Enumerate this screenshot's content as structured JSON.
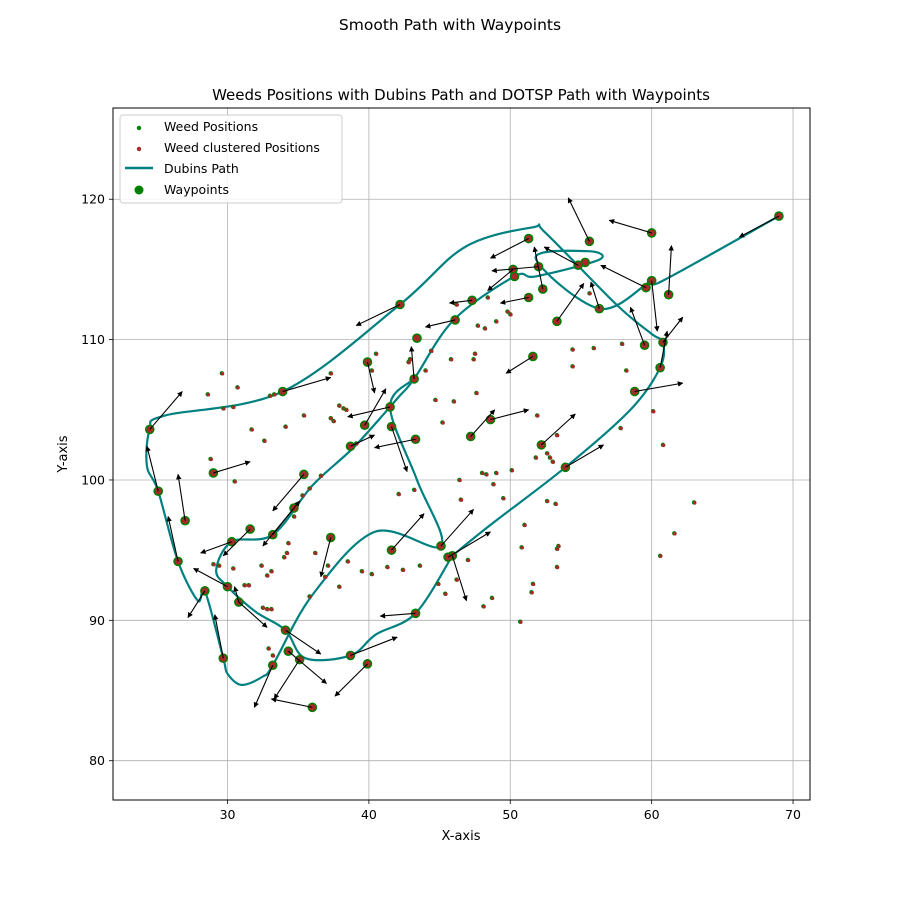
{
  "figure_title": "Smooth Path with Waypoints",
  "chart_data": {
    "type": "scatter",
    "title": "Weeds Positions with Dubins Path and DOTSP Path with Waypoints",
    "xlabel": "X-axis",
    "ylabel": "Y-axis",
    "xlim": [
      21.9,
      71.2
    ],
    "ylim": [
      77.2,
      126.5
    ],
    "xticks": [
      30,
      40,
      50,
      60,
      70
    ],
    "yticks": [
      80,
      90,
      100,
      110,
      120
    ],
    "grid": true,
    "legend_position": "upper-left",
    "legend": [
      {
        "label": "Weed Positions",
        "marker": "small-dot",
        "color": "#008000"
      },
      {
        "label": "Weed clustered Positions",
        "marker": "small-dot",
        "color": "#a52a2a"
      },
      {
        "label": "Dubins Path",
        "marker": "line",
        "color": "#008080"
      },
      {
        "label": "Waypoints",
        "marker": "large-dot",
        "color": "#008000"
      }
    ],
    "colors": {
      "weed": "#008000",
      "clustered": "#a52a2a",
      "path": "#008080",
      "waypoint": "#008000",
      "arrow": "#000000",
      "grid": "#b0b0b0"
    },
    "waypoints": [
      [
        69.0,
        118.8
      ],
      [
        60.0,
        117.6
      ],
      [
        61.2,
        113.2
      ],
      [
        59.6,
        113.7
      ],
      [
        60.0,
        114.2
      ],
      [
        56.3,
        112.2
      ],
      [
        52.3,
        113.6
      ],
      [
        52.0,
        115.2
      ],
      [
        51.3,
        117.2
      ],
      [
        55.6,
        117.0
      ],
      [
        55.3,
        115.5
      ],
      [
        54.8,
        115.3
      ],
      [
        50.2,
        115.0
      ],
      [
        50.3,
        114.5
      ],
      [
        51.3,
        113.0
      ],
      [
        47.3,
        112.8
      ],
      [
        46.1,
        111.4
      ],
      [
        42.2,
        112.5
      ],
      [
        53.3,
        111.3
      ],
      [
        51.6,
        108.8
      ],
      [
        59.5,
        109.6
      ],
      [
        60.8,
        109.8
      ],
      [
        60.6,
        108.0
      ],
      [
        58.8,
        106.3
      ],
      [
        43.2,
        107.2
      ],
      [
        39.9,
        108.4
      ],
      [
        41.5,
        105.2
      ],
      [
        33.9,
        106.3
      ],
      [
        24.5,
        103.6
      ],
      [
        25.1,
        99.2
      ],
      [
        26.5,
        94.2
      ],
      [
        27.0,
        97.1
      ],
      [
        28.4,
        92.1
      ],
      [
        29.0,
        100.5
      ],
      [
        30.0,
        92.4
      ],
      [
        30.3,
        95.6
      ],
      [
        31.6,
        96.5
      ],
      [
        30.8,
        91.3
      ],
      [
        29.7,
        87.3
      ],
      [
        33.2,
        96.1
      ],
      [
        34.7,
        98.0
      ],
      [
        35.4,
        100.4
      ],
      [
        37.3,
        95.9
      ],
      [
        38.7,
        102.4
      ],
      [
        39.7,
        103.9
      ],
      [
        41.6,
        103.8
      ],
      [
        43.3,
        102.9
      ],
      [
        47.2,
        103.1
      ],
      [
        48.6,
        104.3
      ],
      [
        52.2,
        102.5
      ],
      [
        53.9,
        100.9
      ],
      [
        41.6,
        95.0
      ],
      [
        45.1,
        95.3
      ],
      [
        45.9,
        94.6
      ],
      [
        45.6,
        94.5
      ],
      [
        43.3,
        90.5
      ],
      [
        34.1,
        89.3
      ],
      [
        34.3,
        87.8
      ],
      [
        33.2,
        86.8
      ],
      [
        35.1,
        87.2
      ],
      [
        38.7,
        87.5
      ],
      [
        36.0,
        83.8
      ],
      [
        39.9,
        86.9
      ],
      [
        43.4,
        110.1
      ]
    ],
    "weed_positions": [
      [
        28.6,
        106.1
      ],
      [
        29.6,
        107.6
      ],
      [
        30.7,
        106.6
      ],
      [
        29.7,
        105.1
      ],
      [
        30.4,
        105.2
      ],
      [
        28.8,
        101.5
      ],
      [
        30.5,
        99.9
      ],
      [
        31.7,
        103.6
      ],
      [
        32.6,
        102.8
      ],
      [
        33.0,
        106.0
      ],
      [
        33.3,
        106.1
      ],
      [
        35.4,
        104.6
      ],
      [
        37.3,
        107.6
      ],
      [
        37.3,
        104.4
      ],
      [
        37.5,
        104.2
      ],
      [
        37.9,
        105.3
      ],
      [
        38.2,
        105.1
      ],
      [
        38.4,
        105.0
      ],
      [
        39.1,
        102.6
      ],
      [
        40.2,
        107.8
      ],
      [
        40.5,
        109.0
      ],
      [
        41.4,
        105.3
      ],
      [
        42.8,
        108.4
      ],
      [
        42.9,
        108.6
      ],
      [
        44.0,
        107.8
      ],
      [
        44.4,
        109.2
      ],
      [
        45.8,
        108.6
      ],
      [
        46.2,
        112.5
      ],
      [
        47.4,
        108.6
      ],
      [
        47.5,
        109.0
      ],
      [
        47.6,
        106.2
      ],
      [
        47.7,
        111.0
      ],
      [
        48.2,
        110.8
      ],
      [
        48.4,
        113.0
      ],
      [
        49.0,
        111.3
      ],
      [
        49.8,
        112.0
      ],
      [
        50.0,
        111.8
      ],
      [
        49.0,
        100.5
      ],
      [
        48.3,
        100.4
      ],
      [
        48.8,
        99.7
      ],
      [
        49.5,
        98.7
      ],
      [
        50.1,
        100.7
      ],
      [
        51.8,
        101.6
      ],
      [
        52.6,
        101.9
      ],
      [
        53.0,
        101.3
      ],
      [
        52.8,
        101.6
      ],
      [
        51.9,
        104.6
      ],
      [
        53.3,
        103.2
      ],
      [
        54.4,
        109.3
      ],
      [
        54.4,
        108.1
      ],
      [
        55.6,
        113.3
      ],
      [
        55.9,
        109.4
      ],
      [
        57.9,
        109.7
      ],
      [
        58.2,
        107.8
      ],
      [
        57.8,
        103.7
      ],
      [
        60.1,
        104.9
      ],
      [
        60.8,
        102.5
      ],
      [
        61.6,
        96.2
      ],
      [
        63.0,
        98.4
      ],
      [
        60.6,
        94.6
      ],
      [
        52.6,
        98.5
      ],
      [
        53.2,
        98.3
      ],
      [
        53.4,
        95.3
      ],
      [
        53.3,
        95.1
      ],
      [
        53.3,
        93.8
      ],
      [
        51.6,
        92.6
      ],
      [
        51.5,
        92.0
      ],
      [
        50.7,
        89.9
      ],
      [
        50.8,
        95.2
      ],
      [
        51.0,
        96.8
      ],
      [
        48.7,
        91.6
      ],
      [
        48.1,
        91.0
      ],
      [
        47.0,
        94.3
      ],
      [
        46.2,
        92.9
      ],
      [
        45.4,
        91.9
      ],
      [
        44.9,
        92.6
      ],
      [
        43.6,
        93.9
      ],
      [
        42.4,
        93.6
      ],
      [
        41.3,
        93.8
      ],
      [
        40.2,
        93.3
      ],
      [
        39.5,
        93.5
      ],
      [
        38.5,
        94.2
      ],
      [
        37.9,
        92.4
      ],
      [
        37.1,
        93.9
      ],
      [
        36.9,
        93.1
      ],
      [
        36.2,
        94.8
      ],
      [
        35.8,
        91.7
      ],
      [
        34.2,
        94.8
      ],
      [
        34.0,
        94.5
      ],
      [
        34.3,
        95.5
      ],
      [
        33.1,
        93.5
      ],
      [
        32.8,
        93.2
      ],
      [
        32.4,
        93.9
      ],
      [
        31.5,
        92.5
      ],
      [
        31.2,
        92.5
      ],
      [
        32.5,
        90.9
      ],
      [
        32.8,
        90.8
      ],
      [
        33.1,
        90.8
      ],
      [
        32.9,
        88.0
      ],
      [
        33.2,
        87.5
      ],
      [
        30.4,
        93.7
      ],
      [
        29.0,
        94.0
      ],
      [
        29.4,
        93.9
      ],
      [
        34.1,
        103.8
      ],
      [
        36.6,
        100.3
      ],
      [
        35.8,
        99.4
      ],
      [
        35.3,
        98.9
      ],
      [
        34.7,
        97.4
      ],
      [
        44.7,
        105.7
      ],
      [
        46.0,
        105.6
      ],
      [
        45.2,
        104.1
      ],
      [
        46.5,
        98.6
      ],
      [
        46.4,
        100.0
      ],
      [
        48.0,
        100.5
      ],
      [
        43.2,
        99.3
      ],
      [
        42.1,
        99.0
      ]
    ],
    "arrows": [
      [
        69.0,
        118.8,
        66.2,
        117.3
      ],
      [
        60.0,
        117.6,
        57.0,
        118.5
      ],
      [
        61.2,
        113.2,
        61.4,
        116.7
      ],
      [
        59.6,
        113.7,
        56.4,
        115.3
      ],
      [
        60.0,
        114.2,
        60.4,
        110.6
      ],
      [
        56.3,
        112.2,
        55.7,
        114.1
      ],
      [
        52.3,
        113.6,
        51.7,
        116.6
      ],
      [
        52.0,
        115.2,
        48.7,
        114.9
      ],
      [
        51.3,
        117.2,
        48.6,
        115.8
      ],
      [
        55.6,
        117.0,
        54.1,
        120.1
      ],
      [
        54.8,
        115.3,
        52.4,
        116.6
      ],
      [
        50.2,
        115.0,
        48.4,
        113.5
      ],
      [
        51.3,
        113.0,
        49.3,
        112.6
      ],
      [
        47.3,
        112.8,
        45.7,
        112.6
      ],
      [
        46.1,
        111.4,
        44.0,
        110.9
      ],
      [
        42.2,
        112.5,
        39.1,
        111.0
      ],
      [
        53.3,
        111.3,
        55.2,
        114.0
      ],
      [
        51.6,
        108.8,
        49.7,
        107.6
      ],
      [
        59.5,
        109.6,
        58.5,
        112.3
      ],
      [
        60.8,
        109.8,
        62.2,
        111.6
      ],
      [
        58.8,
        106.3,
        62.2,
        106.9
      ],
      [
        43.2,
        107.2,
        43.0,
        109.5
      ],
      [
        39.9,
        108.4,
        40.4,
        106.2
      ],
      [
        41.5,
        105.2,
        38.5,
        104.5
      ],
      [
        33.9,
        106.3,
        37.3,
        107.3
      ],
      [
        24.5,
        103.6,
        26.8,
        106.3
      ],
      [
        25.1,
        99.2,
        24.3,
        102.4
      ],
      [
        26.5,
        94.2,
        25.8,
        97.4
      ],
      [
        27.0,
        97.1,
        26.5,
        100.4
      ],
      [
        28.4,
        92.1,
        27.2,
        90.2
      ],
      [
        29.0,
        100.5,
        31.6,
        101.3
      ],
      [
        30.0,
        92.4,
        27.6,
        93.7
      ],
      [
        30.3,
        95.6,
        28.1,
        94.8
      ],
      [
        31.6,
        96.5,
        29.7,
        94.6
      ],
      [
        30.8,
        91.3,
        32.8,
        89.5
      ],
      [
        29.7,
        87.3,
        29.1,
        90.4
      ],
      [
        33.2,
        96.1,
        35.1,
        98.5
      ],
      [
        34.7,
        98.0,
        32.5,
        95.3
      ],
      [
        35.4,
        100.4,
        33.2,
        97.8
      ],
      [
        37.3,
        95.9,
        36.6,
        93.1
      ],
      [
        38.7,
        102.4,
        40.4,
        103.2
      ],
      [
        39.7,
        103.9,
        41.2,
        106.5
      ],
      [
        41.6,
        103.8,
        42.7,
        100.6
      ],
      [
        43.3,
        102.9,
        40.4,
        102.3
      ],
      [
        47.2,
        103.1,
        48.9,
        105.0
      ],
      [
        48.6,
        104.3,
        51.3,
        105.0
      ],
      [
        52.2,
        102.5,
        54.6,
        104.7
      ],
      [
        53.9,
        100.9,
        56.6,
        102.5
      ],
      [
        41.6,
        95.0,
        43.9,
        97.6
      ],
      [
        45.1,
        95.3,
        47.4,
        97.9
      ],
      [
        45.9,
        94.6,
        46.9,
        91.4
      ],
      [
        45.6,
        94.5,
        48.6,
        96.3
      ],
      [
        43.3,
        90.5,
        40.8,
        90.3
      ],
      [
        34.1,
        89.3,
        36.6,
        87.6
      ],
      [
        34.3,
        87.8,
        37.0,
        85.5
      ],
      [
        33.2,
        86.8,
        31.9,
        83.8
      ],
      [
        35.1,
        87.2,
        33.3,
        84.4
      ],
      [
        38.7,
        87.5,
        42.0,
        88.8
      ],
      [
        36.0,
        83.8,
        33.1,
        84.4
      ],
      [
        39.9,
        86.9,
        37.6,
        84.6
      ],
      [
        30.8,
        91.3,
        30.5,
        92.4
      ],
      [
        60.6,
        108.0,
        61.1,
        110.6
      ]
    ],
    "path": [
      [
        [
          69.0,
          118.8
        ],
        [
          60.8,
          114.2
        ],
        [
          60.0,
          114.2
        ],
        [
          56.3,
          112.2
        ],
        [
          51.8,
          115.8
        ],
        [
          55.5,
          116.3
        ],
        [
          56.3,
          115.7
        ],
        [
          51.8,
          114.5
        ],
        [
          50.3,
          114.5
        ],
        [
          46.0,
          111.4
        ],
        [
          43.2,
          107.2
        ],
        [
          42.0,
          105.8
        ],
        [
          39.0,
          102.4
        ],
        [
          36.0,
          99.6
        ],
        [
          33.2,
          96.1
        ],
        [
          30.3,
          95.6
        ],
        [
          29.2,
          93.6
        ],
        [
          30.0,
          92.4
        ],
        [
          32.0,
          90.6
        ],
        [
          34.1,
          89.3
        ],
        [
          35.5,
          87.3
        ],
        [
          38.7,
          87.5
        ],
        [
          40.5,
          89.0
        ],
        [
          43.3,
          90.5
        ],
        [
          45.9,
          94.6
        ]
      ],
      [
        [
          45.9,
          94.6
        ],
        [
          48.6,
          96.8
        ],
        [
          53.9,
          100.9
        ],
        [
          58.5,
          105.0
        ],
        [
          60.6,
          108.0
        ],
        [
          60.8,
          109.8
        ],
        [
          60.0,
          110.4
        ],
        [
          57.5,
          112.5
        ],
        [
          52.5,
          117.6
        ],
        [
          51.6,
          118.0
        ],
        [
          46.8,
          116.6
        ],
        [
          42.2,
          112.5
        ],
        [
          33.9,
          106.3
        ],
        [
          25.6,
          104.6
        ],
        [
          24.5,
          103.6
        ],
        [
          24.3,
          101.0
        ],
        [
          25.1,
          99.2
        ],
        [
          26.5,
          94.2
        ],
        [
          27.9,
          91.4
        ],
        [
          28.4,
          92.1
        ],
        [
          29.7,
          87.3
        ],
        [
          30.0,
          86.2
        ],
        [
          31.0,
          85.4
        ],
        [
          32.5,
          86.0
        ],
        [
          33.2,
          86.8
        ],
        [
          36.0,
          91.8
        ],
        [
          40.4,
          96.3
        ],
        [
          45.1,
          95.3
        ],
        [
          43.4,
          100.0
        ],
        [
          41.5,
          105.2
        ],
        [
          43.2,
          107.2
        ]
      ]
    ]
  }
}
